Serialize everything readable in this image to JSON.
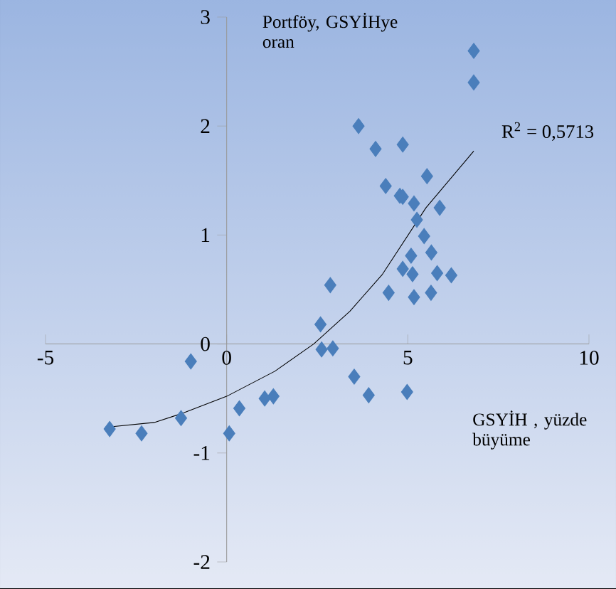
{
  "chart_data": {
    "type": "scatter",
    "xlabel": "GSYİH , yüzde büyüme",
    "ylabel": "Portföy, GSYİHye oran",
    "annotations": [
      "R$^{2}$ = 0,5713"
    ],
    "xlim": [
      -5,
      10
    ],
    "ylim": [
      -2,
      3
    ],
    "xticks": [
      -5,
      0,
      5,
      10
    ],
    "yticks": [
      -2,
      -1,
      0,
      1,
      2,
      3
    ],
    "grid": false,
    "series": [
      {
        "marker": "diamond",
        "color": "#4a7ebb",
        "x": [
          -3.23,
          -2.35,
          -1.26,
          -0.99,
          0.07,
          0.35,
          1.05,
          1.29,
          2.59,
          2.62,
          2.86,
          2.93,
          3.52,
          3.92,
          4.98,
          3.64,
          4.11,
          4.86,
          4.39,
          4.78,
          4.86,
          5.17,
          5.53,
          5.88,
          5.25,
          5.45,
          5.09,
          4.86,
          5.13,
          5.65,
          5.81,
          6.2,
          6.82,
          6.82,
          4.47,
          5.17,
          5.64
        ],
        "values": [
          -0.78,
          -0.82,
          -0.68,
          -0.16,
          -0.82,
          -0.59,
          -0.5,
          -0.48,
          0.18,
          -0.05,
          0.54,
          -0.04,
          -0.3,
          -0.47,
          -0.44,
          2.0,
          1.79,
          1.83,
          1.45,
          1.36,
          1.35,
          1.29,
          1.54,
          1.25,
          1.14,
          0.99,
          0.81,
          0.69,
          0.64,
          0.84,
          0.65,
          0.63,
          2.69,
          2.4,
          0.47,
          0.43,
          0.47
        ]
      },
      {
        "type": "line",
        "marker": "none",
        "color": "#000000",
        "x": [
          -3.2,
          -2,
          -1.26,
          0,
          1.33,
          2.4,
          3.4,
          4.3,
          5.5,
          6.82
        ],
        "values": [
          -0.76,
          -0.72,
          -0.64,
          -0.48,
          -0.25,
          0,
          0.3,
          0.64,
          1.25,
          1.77
        ]
      }
    ]
  }
}
